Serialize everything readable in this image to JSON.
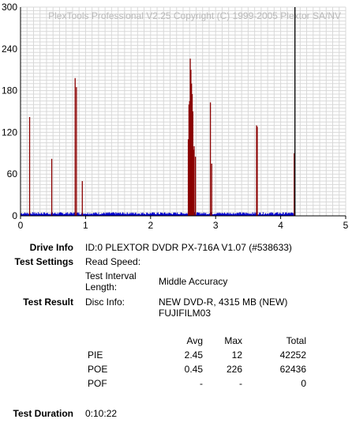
{
  "chart_data": {
    "type": "bar",
    "watermark": "PlexTools Professional V2.25 Copyright (C) 1999-2005 Plextor SA/NV",
    "xlim": [
      0,
      5
    ],
    "ylim": [
      0,
      300
    ],
    "x_ticks": [
      "0",
      "1",
      "2",
      "3",
      "4",
      "5"
    ],
    "y_ticks": [
      "0",
      "60",
      "120",
      "180",
      "240",
      "300"
    ],
    "grid": true,
    "series": [
      {
        "color": "#0000cc",
        "baseline_noise": 4,
        "x_end": 4.22
      },
      {
        "color": "#8b0000",
        "spikes": [
          {
            "x": 0.14,
            "y": 142
          },
          {
            "x": 0.48,
            "y": 82
          },
          {
            "x": 0.84,
            "y": 198
          },
          {
            "x": 0.86,
            "y": 185
          },
          {
            "x": 0.95,
            "y": 50
          },
          {
            "x": 2.58,
            "y": 110
          },
          {
            "x": 2.59,
            "y": 160
          },
          {
            "x": 2.6,
            "y": 165
          },
          {
            "x": 2.61,
            "y": 226
          },
          {
            "x": 2.62,
            "y": 210
          },
          {
            "x": 2.63,
            "y": 190
          },
          {
            "x": 2.64,
            "y": 175
          },
          {
            "x": 2.65,
            "y": 150
          },
          {
            "x": 2.66,
            "y": 95
          },
          {
            "x": 2.67,
            "y": 100
          },
          {
            "x": 2.69,
            "y": 85
          },
          {
            "x": 2.92,
            "y": 163
          },
          {
            "x": 2.94,
            "y": 75
          },
          {
            "x": 3.63,
            "y": 130
          },
          {
            "x": 3.64,
            "y": 128
          },
          {
            "x": 4.21,
            "y": 90
          }
        ]
      },
      {
        "color": "#000000",
        "spikes": [
          {
            "x": 4.22,
            "y": 300
          }
        ]
      }
    ]
  },
  "info": {
    "drive_label": "Drive Info",
    "drive_value": "ID:0 PLEXTOR DVDR PX-716A V1.07 (#538633)",
    "settings_label": "Test Settings",
    "read_speed_label": "Read Speed:",
    "interval_label": "Test Interval Length:",
    "interval_value": "Middle Accuracy",
    "result_label": "Test Result",
    "disc_label": "Disc Info:",
    "disc_value_line1": "NEW DVD-R, 4315 MB (NEW)",
    "disc_value_line2": "FUJIFILM03",
    "duration_label": "Test Duration",
    "duration_value": "0:10:22"
  },
  "table": {
    "headers": [
      "Avg",
      "Max",
      "Total"
    ],
    "rows": [
      {
        "name": "PIE",
        "avg": "2.45",
        "max": "12",
        "total": "42252"
      },
      {
        "name": "POE",
        "avg": "0.45",
        "max": "226",
        "total": "62436"
      },
      {
        "name": "POF",
        "avg": "-",
        "max": "-",
        "total": "0"
      }
    ]
  }
}
